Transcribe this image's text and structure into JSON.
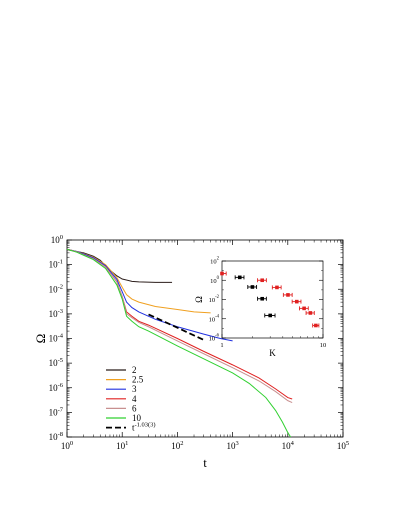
{
  "chart_data": [
    {
      "type": "line",
      "panel": "main",
      "xlabel": "t",
      "ylabel": "Ω",
      "xscale": "log",
      "yscale": "log",
      "xlim": [
        1,
        100000
      ],
      "ylim": [
        1e-08,
        1
      ],
      "x_tick_labels": [
        {
          "base": "10",
          "exp": "0"
        },
        {
          "base": "10",
          "exp": "1"
        },
        {
          "base": "10",
          "exp": "2"
        },
        {
          "base": "10",
          "exp": "3"
        },
        {
          "base": "10",
          "exp": "4"
        },
        {
          "base": "10",
          "exp": "5"
        }
      ],
      "y_tick_labels": [
        {
          "base": "10",
          "exp": "0"
        },
        {
          "base": "10",
          "exp": "-1"
        },
        {
          "base": "10",
          "exp": "-2"
        },
        {
          "base": "10",
          "exp": "-3"
        },
        {
          "base": "10",
          "exp": "-4"
        },
        {
          "base": "10",
          "exp": "-5"
        },
        {
          "base": "10",
          "exp": "-6"
        },
        {
          "base": "10",
          "exp": "-7"
        },
        {
          "base": "10",
          "exp": "-8"
        }
      ],
      "legend_position": "lower-left",
      "series": [
        {
          "name": "2",
          "color": "#2b1d1a",
          "style": "solid",
          "points": [
            [
              1,
              0.4
            ],
            [
              1.5,
              0.34
            ],
            [
              2,
              0.3
            ],
            [
              3,
              0.22
            ],
            [
              4,
              0.15
            ],
            [
              5,
              0.09
            ],
            [
              6,
              0.06
            ],
            [
              8,
              0.035
            ],
            [
              10,
              0.026
            ],
            [
              15,
              0.021
            ],
            [
              20,
              0.02
            ],
            [
              40,
              0.019
            ],
            [
              80,
              0.019
            ]
          ]
        },
        {
          "name": "2.5",
          "color": "#f0a020",
          "style": "solid",
          "points": [
            [
              1,
              0.42
            ],
            [
              1.5,
              0.34
            ],
            [
              2,
              0.28
            ],
            [
              3,
              0.2
            ],
            [
              5,
              0.1
            ],
            [
              8,
              0.03
            ],
            [
              10,
              0.012
            ],
            [
              12,
              0.006
            ],
            [
              15,
              0.004
            ],
            [
              20,
              0.003
            ],
            [
              40,
              0.002
            ],
            [
              100,
              0.0015
            ],
            [
              200,
              0.0012
            ],
            [
              400,
              0.0011
            ]
          ]
        },
        {
          "name": "3",
          "color": "#2030e0",
          "style": "solid",
          "points": [
            [
              1,
              0.42
            ],
            [
              1.5,
              0.34
            ],
            [
              2,
              0.27
            ],
            [
              3,
              0.19
            ],
            [
              5,
              0.09
            ],
            [
              8,
              0.025
            ],
            [
              10,
              0.008
            ],
            [
              12,
              0.003
            ],
            [
              15,
              0.0018
            ],
            [
              20,
              0.0012
            ],
            [
              40,
              0.0006
            ],
            [
              100,
              0.0003
            ],
            [
              300,
              0.00015
            ],
            [
              600,
              0.0001
            ],
            [
              1000,
              8e-05
            ]
          ]
        },
        {
          "name": "4",
          "color": "#e02020",
          "style": "solid",
          "points": [
            [
              1,
              0.42
            ],
            [
              1.5,
              0.33
            ],
            [
              2,
              0.25
            ],
            [
              3,
              0.17
            ],
            [
              5,
              0.08
            ],
            [
              8,
              0.02
            ],
            [
              10,
              0.005
            ],
            [
              12,
              0.0012
            ],
            [
              15,
              0.0008
            ],
            [
              20,
              0.0005
            ],
            [
              30,
              0.00035
            ],
            [
              100,
              0.0001
            ],
            [
              300,
              3e-05
            ],
            [
              1000,
              8.5e-06
            ],
            [
              3000,
              2.5e-06
            ],
            [
              6000,
              9e-07
            ],
            [
              10000,
              4e-07
            ],
            [
              12000,
              3.5e-07
            ]
          ]
        },
        {
          "name": "6",
          "color": "#c89090",
          "style": "solid",
          "points": [
            [
              1,
              0.42
            ],
            [
              1.5,
              0.33
            ],
            [
              2,
              0.25
            ],
            [
              3,
              0.17
            ],
            [
              5,
              0.08
            ],
            [
              8,
              0.02
            ],
            [
              10,
              0.005
            ],
            [
              12,
              0.001
            ],
            [
              15,
              0.0007
            ],
            [
              20,
              0.00045
            ],
            [
              30,
              0.0003
            ],
            [
              100,
              8e-05
            ],
            [
              300,
              2.4e-05
            ],
            [
              1000,
              6.5e-06
            ],
            [
              3000,
              1.9e-06
            ],
            [
              6000,
              7e-07
            ],
            [
              10000,
              3e-07
            ],
            [
              12000,
              2.5e-07
            ]
          ]
        },
        {
          "name": "10",
          "color": "#30d030",
          "style": "solid",
          "points": [
            [
              1,
              0.42
            ],
            [
              1.5,
              0.32
            ],
            [
              2,
              0.24
            ],
            [
              3,
              0.16
            ],
            [
              5,
              0.07
            ],
            [
              8,
              0.015
            ],
            [
              10,
              0.004
            ],
            [
              12,
              0.0008
            ],
            [
              15,
              0.0005
            ],
            [
              20,
              0.0003
            ],
            [
              30,
              0.0002
            ],
            [
              100,
              5e-05
            ],
            [
              300,
              1.5e-05
            ],
            [
              1000,
              4e-06
            ],
            [
              2000,
              1.5e-06
            ],
            [
              4000,
              4e-07
            ],
            [
              6000,
              1.2e-07
            ],
            [
              8000,
              4e-08
            ],
            [
              10000,
              1.5e-08
            ],
            [
              12000,
              8e-09
            ]
          ]
        },
        {
          "name_base": "t",
          "name_exp": "-1.03(3)",
          "color": "#000000",
          "style": "dashed",
          "points": [
            [
              30,
              0.00095
            ],
            [
              300,
              8.8e-05
            ]
          ]
        }
      ]
    },
    {
      "type": "scatter",
      "panel": "inset",
      "xlabel": "K",
      "ylabel": "Ω",
      "xscale": "log",
      "yscale": "log",
      "xlim": [
        1,
        10
      ],
      "ylim": [
        1e-06,
        100
      ],
      "x_tick_labels": [
        "1",
        "10"
      ],
      "y_tick_labels": [
        {
          "base": "10",
          "exp": "2"
        },
        {
          "base": "10",
          "exp": "0"
        },
        {
          "base": "10",
          "exp": "-2"
        },
        {
          "base": "10",
          "exp": "-4"
        },
        {
          "base": "10",
          "exp": "-6"
        }
      ],
      "series": [
        {
          "color": "#000000",
          "points": [
            {
              "x": 1.5,
              "y": 2.0,
              "xerr": 0.15
            },
            {
              "x": 2.0,
              "y": 0.2,
              "xerr": 0.2
            },
            {
              "x": 2.5,
              "y": 0.012,
              "xerr": 0.25
            },
            {
              "x": 3.0,
              "y": 0.00022,
              "xerr": 0.35
            }
          ]
        },
        {
          "color": "#e02020",
          "points": [
            {
              "x": 1.0,
              "y": 5.0,
              "xerr": 0.1
            },
            {
              "x": 2.5,
              "y": 1.0,
              "xerr": 0.25
            },
            {
              "x": 3.5,
              "y": 0.18,
              "xerr": 0.35
            },
            {
              "x": 4.5,
              "y": 0.03,
              "xerr": 0.45
            },
            {
              "x": 5.5,
              "y": 0.006,
              "xerr": 0.55
            },
            {
              "x": 6.5,
              "y": 0.0012,
              "xerr": 0.65
            },
            {
              "x": 7.5,
              "y": 0.0004,
              "xerr": 0.7
            },
            {
              "x": 8.5,
              "y": 2e-05,
              "xerr": 0.6
            }
          ]
        }
      ]
    }
  ]
}
